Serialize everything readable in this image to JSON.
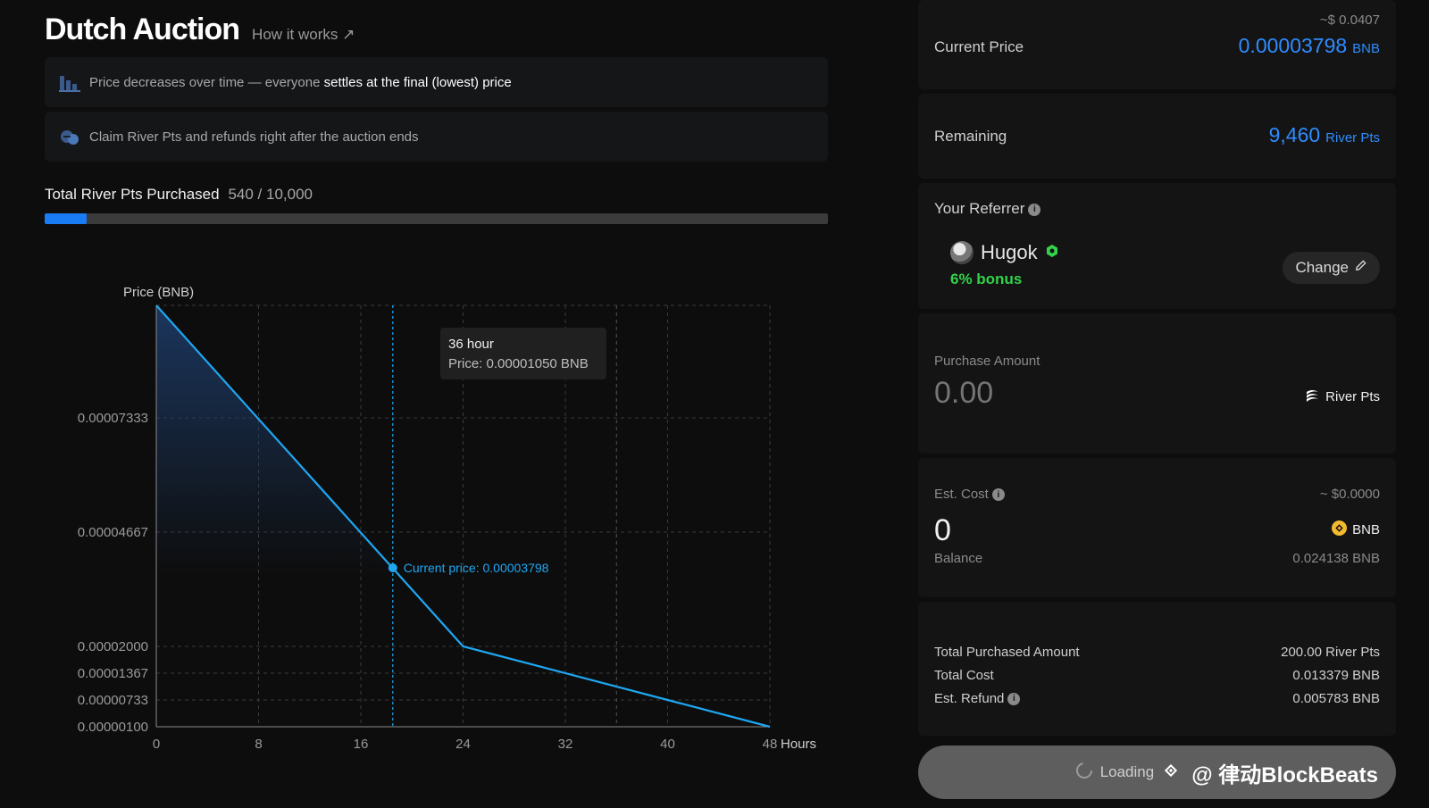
{
  "header": {
    "title": "Dutch Auction",
    "how_it_works": "How it works ↗"
  },
  "info": {
    "line1_pre": "Price decreases over time — everyone ",
    "line1_hl": "settles at the final (lowest) price",
    "line2": "Claim River Pts and refunds right after the auction ends"
  },
  "progress": {
    "label": "Total River Pts Purchased",
    "count": "540 / 10,000",
    "fraction": 0.054
  },
  "chart_data": {
    "type": "line",
    "ylabel": "Price (BNB)",
    "xlabel_unit": "Hours",
    "x_ticks": [
      "0",
      "8",
      "16",
      "24",
      "32",
      "40",
      "48"
    ],
    "y_ticks": [
      "0.00007333",
      "0.00004667",
      "0.00002000",
      "0.00001367",
      "0.00000733",
      "0.00000100"
    ],
    "series": [
      {
        "x": [
          0,
          24,
          48
        ],
        "y": [
          0.0001,
          2e-05,
          1e-06
        ]
      }
    ],
    "xlim": [
      0,
      48
    ],
    "current_x": 18.5,
    "current_label": "Current price: 0.00003798",
    "tooltip_title": "36 hour",
    "tooltip_price": "Price: 0.00001050 BNB",
    "grid": true
  },
  "current_price": {
    "label": "Current Price",
    "usd": "~$ 0.0407",
    "value": "0.00003798",
    "unit": "BNB"
  },
  "remaining": {
    "label": "Remaining",
    "value": "9,460",
    "unit": "River Pts"
  },
  "referrer": {
    "label": "Your Referrer",
    "name": "Hugok",
    "bonus": "6% bonus",
    "change": "Change"
  },
  "purchase": {
    "label": "Purchase Amount",
    "placeholder": "0.00",
    "token": "River Pts"
  },
  "est_cost": {
    "label": "Est. Cost",
    "usd": "~ $0.0000",
    "value": "0",
    "token": "BNB",
    "balance_label": "Balance",
    "balance": "0.024138 BNB"
  },
  "totals": {
    "purchased_label": "Total Purchased Amount",
    "purchased": "200.00 River Pts",
    "cost_label": "Total Cost",
    "cost": "0.013379 BNB",
    "refund_label": "Est. Refund",
    "refund": "0.005783 BNB"
  },
  "action": {
    "loading": "Loading",
    "watermark": "@ 律动BlockBeats"
  },
  "colors": {
    "accent": "#2f8cff",
    "line": "#1ea7f2",
    "bonus": "#33d24a"
  }
}
